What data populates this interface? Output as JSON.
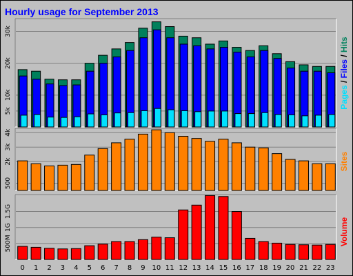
{
  "title": "Hourly usage for September 2013",
  "colors": {
    "background": "#c0c0c0",
    "title": "#0000ff",
    "hits": "#00805c",
    "files": "#0000ff",
    "pages": "#00e0ff",
    "sites": "#ff8000",
    "volume": "#ff0000"
  },
  "chart_data": [
    {
      "type": "bar",
      "categories": [
        "0",
        "1",
        "2",
        "3",
        "4",
        "5",
        "6",
        "7",
        "8",
        "9",
        "10",
        "11",
        "12",
        "13",
        "14",
        "15",
        "16",
        "17",
        "18",
        "19",
        "20",
        "21",
        "22",
        "23"
      ],
      "yticks": [
        "5k",
        "10k",
        "20k",
        "30k"
      ],
      "legend": [
        {
          "key": "pages",
          "text": "Pages"
        },
        {
          "key": "sep1",
          "text": " / "
        },
        {
          "key": "files",
          "text": "Files"
        },
        {
          "key": "sep2",
          "text": " / "
        },
        {
          "key": "hits",
          "text": "Hits"
        }
      ],
      "ylim": [
        0,
        34000
      ],
      "ytick_values": [
        5000,
        10000,
        20000,
        30000
      ],
      "series": [
        {
          "name": "Hits",
          "color_key": "hits",
          "values": [
            18000,
            17500,
            15000,
            14800,
            14800,
            20000,
            22500,
            24500,
            26500,
            31000,
            33000,
            31500,
            28500,
            28000,
            26000,
            27000,
            25000,
            24000,
            25500,
            23000,
            20500,
            19500,
            19000,
            19000
          ]
        },
        {
          "name": "Files",
          "color_key": "files",
          "values": [
            16000,
            15000,
            13500,
            13000,
            13200,
            17500,
            20000,
            22000,
            24000,
            28000,
            30500,
            28000,
            26000,
            25500,
            24500,
            25000,
            23500,
            22000,
            24000,
            21500,
            18500,
            17500,
            17500,
            17000
          ]
        },
        {
          "name": "Pages",
          "color_key": "pages",
          "values": [
            3700,
            3900,
            3100,
            3000,
            3200,
            4100,
            3800,
            4400,
            4500,
            5100,
            5800,
            5400,
            5100,
            4800,
            5000,
            5000,
            4200,
            4200,
            4500,
            3900,
            3800,
            3500,
            3700,
            3900
          ]
        }
      ]
    },
    {
      "type": "bar",
      "categories": [
        "0",
        "1",
        "2",
        "3",
        "4",
        "5",
        "6",
        "7",
        "8",
        "9",
        "10",
        "11",
        "12",
        "13",
        "14",
        "15",
        "16",
        "17",
        "18",
        "19",
        "20",
        "21",
        "22",
        "23"
      ],
      "yticks": [
        "500",
        "2k",
        "3k",
        "4k"
      ],
      "legend": [
        {
          "key": "sites",
          "text": "Sites"
        }
      ],
      "ylim": [
        0,
        4300
      ],
      "ytick_values": [
        500,
        2000,
        3000,
        4000
      ],
      "series": [
        {
          "name": "Sites",
          "color_key": "sites",
          "values": [
            2050,
            1850,
            1700,
            1750,
            1800,
            2450,
            2900,
            3300,
            3550,
            3900,
            4200,
            4000,
            3750,
            3600,
            3400,
            3550,
            3300,
            3000,
            2950,
            2550,
            2150,
            2050,
            1850,
            1850
          ]
        }
      ]
    },
    {
      "type": "bar",
      "categories": [
        "0",
        "1",
        "2",
        "3",
        "4",
        "5",
        "6",
        "7",
        "8",
        "9",
        "10",
        "11",
        "12",
        "13",
        "14",
        "15",
        "16",
        "17",
        "18",
        "19",
        "20",
        "21",
        "22",
        "23"
      ],
      "yticks": [
        "500M",
        "1G",
        "1.5G"
      ],
      "legend": [
        {
          "key": "volume",
          "text": "Volume"
        }
      ],
      "ylim": [
        0,
        2030
      ],
      "ytick_values": [
        500,
        1000,
        1500
      ],
      "series": [
        {
          "name": "Volume",
          "color_key": "volume",
          "values": [
            410,
            380,
            350,
            330,
            340,
            430,
            480,
            560,
            560,
            620,
            700,
            680,
            1550,
            1700,
            2000,
            1970,
            1500,
            660,
            560,
            510,
            470,
            460,
            450,
            470
          ]
        }
      ]
    }
  ]
}
